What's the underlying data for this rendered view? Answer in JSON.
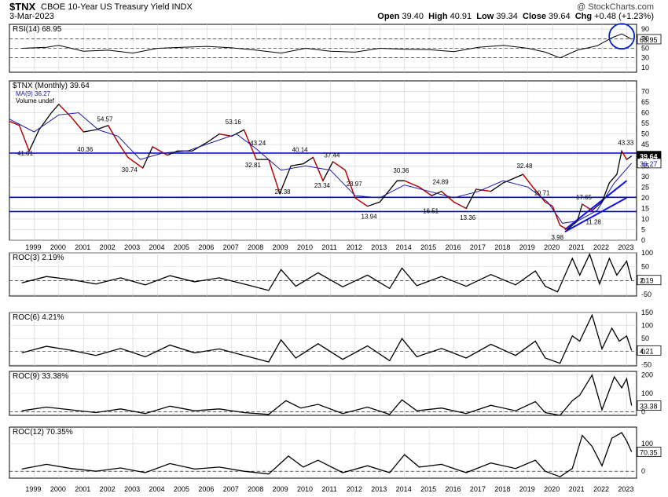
{
  "header": {
    "symbol": "$TNX",
    "title": "CBOE 10-Year US Treasury Yield",
    "exchange": "INDX",
    "date": "3-Mar-2023",
    "source": "@ StockCharts.com",
    "open_label": "Open",
    "open": "39.40",
    "high_label": "High",
    "high": "40.91",
    "low_label": "Low",
    "low": "39.34",
    "close_label": "Close",
    "close": "39.64",
    "chg_label": "Chg",
    "chg": "+0.48 (+1.23%)"
  },
  "colors": {
    "rsi_line": "#000000",
    "price_up": "#000000",
    "price_down": "#cc0000",
    "ma_line": "#1a1aa8",
    "support_lines": "#0000cc",
    "trend_lines": "#1010ee",
    "highlight_circle": "#0022cc",
    "roc_line": "#000000",
    "grid": "#d4d4d4",
    "price_label_bg": "#000000"
  },
  "chart_data": [
    {
      "type": "line",
      "panel": "rsi",
      "title": "RSI(14) 68.95",
      "ylim": [
        0,
        100
      ],
      "y_ticks": [
        "90",
        "70",
        "50",
        "30",
        "10"
      ],
      "reference_lines": [
        70,
        50,
        30
      ],
      "last_value_label": "68.95",
      "annotation": "circle around latest RSI peak",
      "series": [
        {
          "x": [
            1998.5,
            1999.5,
            2000.0,
            2001.0,
            2002.0,
            2003.0,
            2004.0,
            2005.0,
            2006.0,
            2007.0,
            2008.0,
            2009.0,
            2010.0,
            2011.0,
            2012.0,
            2013.0,
            2014.0,
            2015.0,
            2016.0,
            2017.0,
            2018.0,
            2019.0,
            2019.7,
            2020.3,
            2021.0,
            2021.8,
            2022.4,
            2022.8,
            2023.2
          ],
          "values": [
            50,
            52,
            56,
            44,
            46,
            40,
            50,
            52,
            54,
            51,
            46,
            40,
            50,
            44,
            42,
            50,
            48,
            47,
            43,
            52,
            56,
            50,
            42,
            30,
            46,
            55,
            72,
            80,
            68.95
          ]
        }
      ]
    },
    {
      "type": "line",
      "panel": "price",
      "title": "$TNX (Monthly) 39.64",
      "legend": [
        "MA(9) 36.27",
        "Volume undef"
      ],
      "ylim": [
        0,
        75
      ],
      "y_ticks": [
        "70",
        "65",
        "60",
        "55",
        "50",
        "45",
        "40",
        "35",
        "30",
        "25",
        "20",
        "15",
        "10",
        "5",
        "0"
      ],
      "x_tick_labels": [
        "1999",
        "2000",
        "2001",
        "2002",
        "2003",
        "2004",
        "2005",
        "2006",
        "2007",
        "2008",
        "2009",
        "2010",
        "2011",
        "2012",
        "2013",
        "2014",
        "2015",
        "2016",
        "2017",
        "2018",
        "2019",
        "2020",
        "2021",
        "2022",
        "2023"
      ],
      "series": [
        {
          "name": "$TNX",
          "x": [
            1998.0,
            1998.4,
            1998.8,
            1999.2,
            1999.7,
            2000.0,
            2000.5,
            2001.0,
            2001.5,
            2002.0,
            2002.4,
            2002.8,
            2003.4,
            2003.8,
            2004.4,
            2004.8,
            2005.4,
            2006.0,
            2006.5,
            2007.0,
            2007.5,
            2008.0,
            2008.5,
            2008.95,
            2009.4,
            2009.9,
            2010.3,
            2010.7,
            2011.1,
            2011.6,
            2012.0,
            2012.5,
            2013.0,
            2013.7,
            2014.0,
            2014.6,
            2015.1,
            2015.5,
            2016.0,
            2016.5,
            2016.9,
            2017.5,
            2018.0,
            2018.8,
            2019.2,
            2019.7,
            2020.0,
            2020.3,
            2020.6,
            2021.0,
            2021.2,
            2021.6,
            2022.0,
            2022.3,
            2022.6,
            2022.8,
            2023.0,
            2023.2
          ],
          "values": [
            56,
            54,
            42,
            52,
            60,
            64,
            58,
            51,
            52,
            54,
            46,
            39,
            34,
            44,
            40,
            42,
            42,
            46,
            50,
            49,
            52,
            38,
            38,
            22,
            35,
            36,
            39,
            28,
            37,
            33,
            20,
            16,
            18,
            28,
            28,
            25,
            21,
            23,
            18,
            15,
            24,
            23,
            27,
            31,
            25,
            18,
            16,
            7,
            5,
            9,
            17,
            14,
            18,
            27,
            31,
            42,
            38,
            39.64
          ]
        },
        {
          "name": "MA(9)",
          "x": [
            1998.0,
            1999.0,
            2000.0,
            2000.8,
            2001.6,
            2002.4,
            2003.3,
            2004.2,
            2005.2,
            2006.2,
            2007.2,
            2008.0,
            2009.0,
            2010.0,
            2011.0,
            2012.0,
            2013.0,
            2014.0,
            2015.0,
            2016.0,
            2017.0,
            2018.0,
            2019.0,
            2019.8,
            2020.4,
            2021.0,
            2021.8,
            2022.5,
            2023.2
          ],
          "values": [
            57,
            51,
            59,
            60,
            52,
            49,
            38,
            41,
            42,
            46,
            50,
            43,
            33,
            35,
            33,
            21,
            20,
            26,
            23,
            20,
            23,
            28,
            25,
            18,
            8,
            9,
            14,
            27,
            36.27
          ]
        }
      ],
      "horizontal_lines": [
        {
          "value": 41.01,
          "label": "41.01"
        },
        {
          "value": 20.2,
          "label": ""
        },
        {
          "value": 13.5,
          "label": ""
        }
      ],
      "trend_lines": [
        {
          "from": [
            2020.5,
            5.0
          ],
          "to": [
            2023.0,
            28.0
          ]
        },
        {
          "from": [
            2020.5,
            4.0
          ],
          "to": [
            2023.0,
            20.0
          ]
        }
      ],
      "annotations": [
        {
          "text": "54.57",
          "x": 2001.8,
          "value": 54.57
        },
        {
          "text": "40.36",
          "x": 2001.0,
          "value": 40.36
        },
        {
          "text": "30.74",
          "x": 2002.8,
          "value": 30.74
        },
        {
          "text": "53.16",
          "x": 2007.0,
          "value": 53.16
        },
        {
          "text": "43.24",
          "x": 2008.0,
          "value": 43.24
        },
        {
          "text": "32.81",
          "x": 2007.8,
          "value": 32.81
        },
        {
          "text": "40.14",
          "x": 2009.7,
          "value": 40.14
        },
        {
          "text": "20.38",
          "x": 2009.0,
          "value": 20.38
        },
        {
          "text": "37.44",
          "x": 2011.0,
          "value": 37.44
        },
        {
          "text": "23.97",
          "x": 2011.9,
          "value": 23.97
        },
        {
          "text": "23.34",
          "x": 2010.6,
          "value": 23.34
        },
        {
          "text": "13.94",
          "x": 2012.5,
          "value": 13.94
        },
        {
          "text": "30.36",
          "x": 2013.8,
          "value": 30.36
        },
        {
          "text": "24.89",
          "x": 2015.4,
          "value": 24.89
        },
        {
          "text": "16.51",
          "x": 2015.0,
          "value": 16.51
        },
        {
          "text": "13.36",
          "x": 2016.5,
          "value": 13.36
        },
        {
          "text": "32.48",
          "x": 2018.8,
          "value": 32.48
        },
        {
          "text": "19.71",
          "x": 2019.5,
          "value": 19.71
        },
        {
          "text": "17.65",
          "x": 2021.2,
          "value": 17.65
        },
        {
          "text": "11.28",
          "x": 2021.6,
          "value": 11.28
        },
        {
          "text": "3.98",
          "x": 2020.2,
          "value": 3.98
        },
        {
          "text": "43.33",
          "x": 2022.9,
          "value": 43.33
        }
      ],
      "right_labels": [
        "39.64",
        "36.27"
      ]
    },
    {
      "type": "line",
      "panel": "roc3",
      "title": "ROC(3) 2.19%",
      "ylim": [
        -55,
        100
      ],
      "y_ticks": [
        "100",
        "50",
        "0",
        "-50"
      ],
      "last_value_label": "2.19",
      "series": [
        {
          "x": [
            1998.5,
            1999.5,
            2000.5,
            2001.5,
            2002.5,
            2003.5,
            2004.5,
            2005.5,
            2006.5,
            2007.5,
            2008.5,
            2009.0,
            2009.6,
            2010.5,
            2011.5,
            2012.5,
            2013.4,
            2013.9,
            2014.5,
            2015.5,
            2016.5,
            2017.5,
            2018.5,
            2019.3,
            2019.7,
            2020.2,
            2020.8,
            2021.1,
            2021.5,
            2021.9,
            2022.3,
            2022.6,
            2023.0,
            2023.2
          ],
          "values": [
            -8,
            15,
            4,
            -12,
            10,
            -15,
            18,
            -4,
            10,
            -12,
            -35,
            40,
            -20,
            28,
            -22,
            20,
            -28,
            45,
            -18,
            15,
            -20,
            22,
            -15,
            35,
            -20,
            -40,
            80,
            20,
            95,
            -12,
            80,
            20,
            70,
            2.19
          ]
        }
      ]
    },
    {
      "type": "line",
      "panel": "roc6",
      "title": "ROC(6) 4.21%",
      "ylim": [
        -55,
        150
      ],
      "y_ticks": [
        "150",
        "100",
        "50",
        "0",
        "-50"
      ],
      "last_value_label": "4.21",
      "series": [
        {
          "x": [
            1998.5,
            1999.5,
            2000.5,
            2001.5,
            2002.5,
            2003.5,
            2004.5,
            2005.5,
            2006.5,
            2007.5,
            2008.5,
            2009.0,
            2009.6,
            2010.5,
            2011.5,
            2012.5,
            2013.4,
            2013.9,
            2014.5,
            2015.5,
            2016.5,
            2017.5,
            2018.5,
            2019.3,
            2019.7,
            2020.3,
            2020.8,
            2021.1,
            2021.6,
            2022.0,
            2022.4,
            2022.7,
            2023.0,
            2023.2
          ],
          "values": [
            -5,
            20,
            5,
            -15,
            12,
            -20,
            25,
            -5,
            10,
            -15,
            -40,
            45,
            -25,
            30,
            -30,
            22,
            -35,
            50,
            -20,
            12,
            -25,
            28,
            -15,
            40,
            -25,
            -45,
            60,
            40,
            140,
            10,
            90,
            40,
            60,
            4.21
          ]
        }
      ]
    },
    {
      "type": "line",
      "panel": "roc9",
      "title": "ROC(9) 33.38%",
      "ylim": [
        -20,
        220
      ],
      "y_ticks": [
        "200",
        "100",
        "0"
      ],
      "last_value_label": "33.38",
      "series": [
        {
          "x": [
            1998.5,
            1999.5,
            2000.5,
            2001.5,
            2002.5,
            2003.5,
            2004.5,
            2005.5,
            2006.5,
            2007.5,
            2008.5,
            2009.2,
            2009.8,
            2010.5,
            2011.5,
            2012.5,
            2013.4,
            2013.9,
            2014.5,
            2015.5,
            2016.5,
            2017.5,
            2018.5,
            2019.3,
            2019.7,
            2020.3,
            2020.8,
            2021.1,
            2021.6,
            2022.0,
            2022.5,
            2022.8,
            2023.0,
            2023.2
          ],
          "values": [
            5,
            25,
            10,
            -5,
            15,
            -10,
            30,
            5,
            15,
            -5,
            -15,
            60,
            20,
            40,
            -10,
            25,
            -15,
            65,
            5,
            20,
            -10,
            35,
            5,
            55,
            -5,
            -20,
            60,
            90,
            200,
            10,
            190,
            130,
            180,
            33.38
          ]
        }
      ]
    },
    {
      "type": "line",
      "panel": "roc12",
      "title": "ROC(12) 70.35%",
      "ylim": [
        -25,
        160
      ],
      "y_ticks": [
        "100",
        "0"
      ],
      "last_value_label": "70.35",
      "series": [
        {
          "x": [
            1998.5,
            1999.5,
            2000.5,
            2001.5,
            2002.5,
            2003.5,
            2004.5,
            2005.5,
            2006.5,
            2007.5,
            2008.5,
            2009.3,
            2009.9,
            2010.5,
            2011.5,
            2012.5,
            2013.4,
            2014.0,
            2014.6,
            2015.5,
            2016.5,
            2017.5,
            2018.5,
            2019.3,
            2019.7,
            2020.3,
            2020.8,
            2021.2,
            2021.6,
            2022.0,
            2022.4,
            2022.8,
            2023.0,
            2023.2
          ],
          "values": [
            8,
            25,
            10,
            0,
            12,
            -5,
            28,
            8,
            15,
            0,
            -10,
            55,
            15,
            40,
            -5,
            20,
            -5,
            60,
            15,
            25,
            -5,
            30,
            10,
            40,
            0,
            -20,
            10,
            130,
            90,
            20,
            120,
            140,
            110,
            70.35
          ]
        }
      ]
    }
  ]
}
